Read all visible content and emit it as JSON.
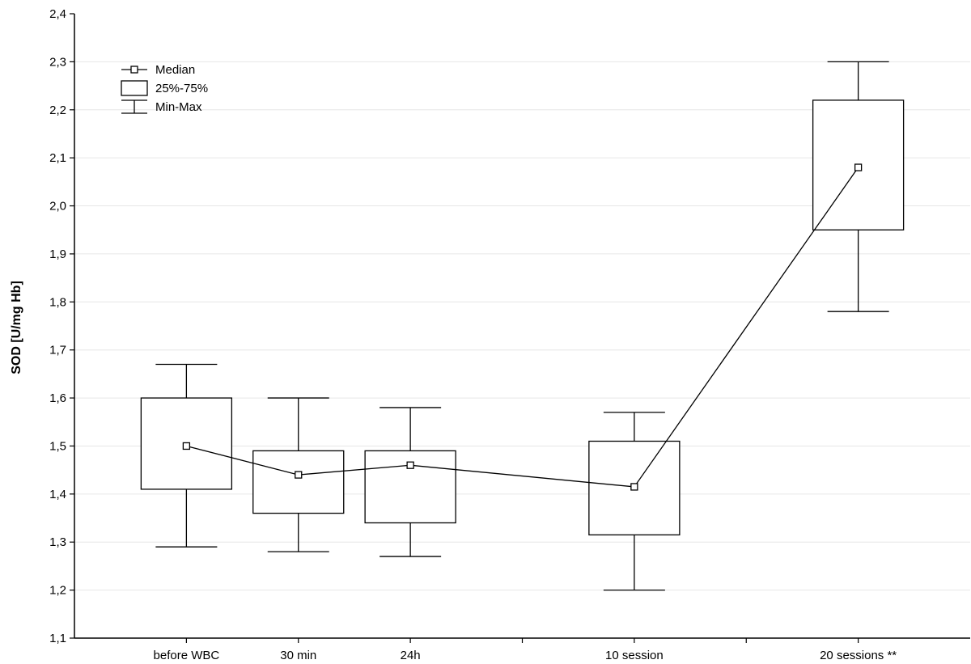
{
  "chart_data": {
    "type": "boxplot",
    "title": "",
    "xlabel": "",
    "ylabel": "SOD [U/mg Hb]",
    "ylim": [
      1.1,
      2.4
    ],
    "y_ticks": [
      "1,1",
      "1,2",
      "1,3",
      "1,4",
      "1,5",
      "1,6",
      "1,7",
      "1,8",
      "1,9",
      "2,0",
      "2,1",
      "2,2",
      "2,3",
      "2,4"
    ],
    "y_tick_values": [
      1.1,
      1.2,
      1.3,
      1.4,
      1.5,
      1.6,
      1.7,
      1.8,
      1.9,
      2.0,
      2.1,
      2.2,
      2.3,
      2.4
    ],
    "grid": true,
    "legend_position": "top-left",
    "legend": [
      {
        "symbol": "median",
        "label": "Median"
      },
      {
        "symbol": "box",
        "label": "25%-75%"
      },
      {
        "symbol": "whisker",
        "label": "Min-Max"
      }
    ],
    "categories": [
      {
        "label": "before WBC",
        "slot": 1,
        "min": 1.29,
        "q1": 1.41,
        "median": 1.5,
        "q3": 1.6,
        "max": 1.67
      },
      {
        "label": "30 min",
        "slot": 2,
        "min": 1.28,
        "q1": 1.36,
        "median": 1.44,
        "q3": 1.49,
        "max": 1.6
      },
      {
        "label": "24h",
        "slot": 3,
        "min": 1.27,
        "q1": 1.34,
        "median": 1.46,
        "q3": 1.49,
        "max": 1.58
      },
      {
        "label": "10 session",
        "slot": 5,
        "min": 1.2,
        "q1": 1.315,
        "median": 1.415,
        "q3": 1.51,
        "max": 1.57
      },
      {
        "label": "20 sessions **",
        "slot": 7,
        "min": 1.78,
        "q1": 1.95,
        "median": 2.08,
        "q3": 2.22,
        "max": 2.3
      }
    ],
    "x_slots": 8
  }
}
